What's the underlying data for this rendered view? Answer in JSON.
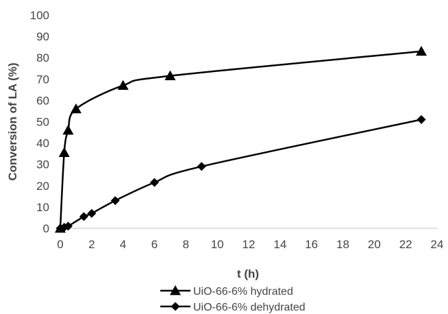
{
  "chart_data": {
    "type": "line",
    "title": "",
    "xlabel": "t (h)",
    "ylabel": "Conversion of LA (%)",
    "xlim": [
      0,
      24
    ],
    "ylim": [
      0,
      100
    ],
    "xticks": [
      0,
      2,
      4,
      6,
      8,
      10,
      12,
      14,
      16,
      18,
      20,
      22,
      24
    ],
    "yticks": [
      0,
      10,
      20,
      30,
      40,
      50,
      60,
      70,
      80,
      90,
      100
    ],
    "grid": false,
    "legend_position": "bottom",
    "series": [
      {
        "name": "UiO-66-6% hydrated",
        "marker": "triangle",
        "color": "#000000",
        "x": [
          0,
          0.25,
          0.5,
          1,
          4,
          7,
          23
        ],
        "y": [
          0,
          35.5,
          46,
          56,
          67,
          71.5,
          83
        ]
      },
      {
        "name": "UiO-66-6% dehydrated",
        "marker": "diamond",
        "color": "#000000",
        "x": [
          0,
          0.25,
          0.5,
          1.5,
          2,
          3.5,
          6,
          9,
          23
        ],
        "y": [
          0,
          0.5,
          1,
          5.5,
          7,
          13,
          21.5,
          29,
          51
        ]
      }
    ]
  }
}
